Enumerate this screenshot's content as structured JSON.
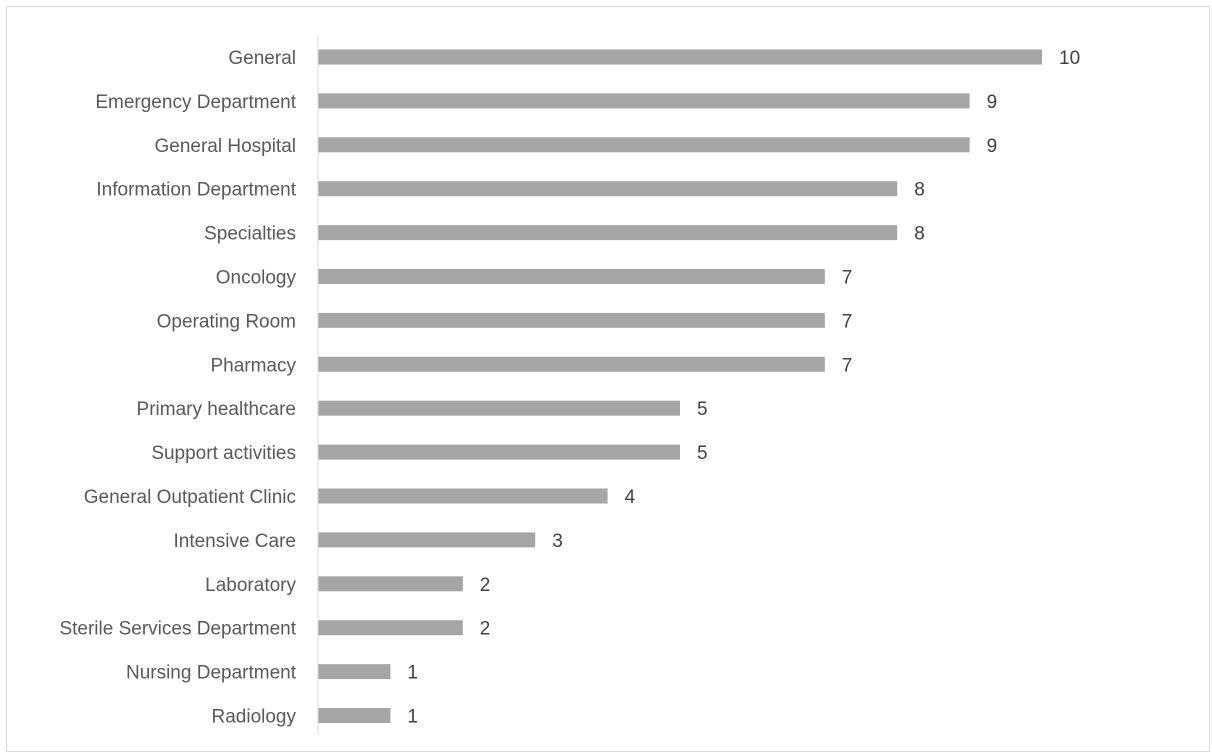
{
  "chart_data": {
    "type": "bar",
    "orientation": "horizontal",
    "title": "",
    "xlabel": "",
    "ylabel": "",
    "xlim": [
      0,
      10
    ],
    "grid": false,
    "legend": "none",
    "bar_color": "#a5a5a5",
    "data_labels": true,
    "categories": [
      "General",
      "Emergency Department",
      "General Hospital",
      "Information Department",
      "Specialties",
      "Oncology",
      "Operating Room",
      "Pharmacy",
      "Primary healthcare",
      "Support activities",
      "General Outpatient Clinic",
      "Intensive Care",
      "Laboratory",
      "Sterile Services Department",
      "Nursing Department",
      "Radiology"
    ],
    "values": [
      10,
      9,
      9,
      8,
      8,
      7,
      7,
      7,
      5,
      5,
      4,
      3,
      2,
      2,
      1,
      1
    ]
  }
}
